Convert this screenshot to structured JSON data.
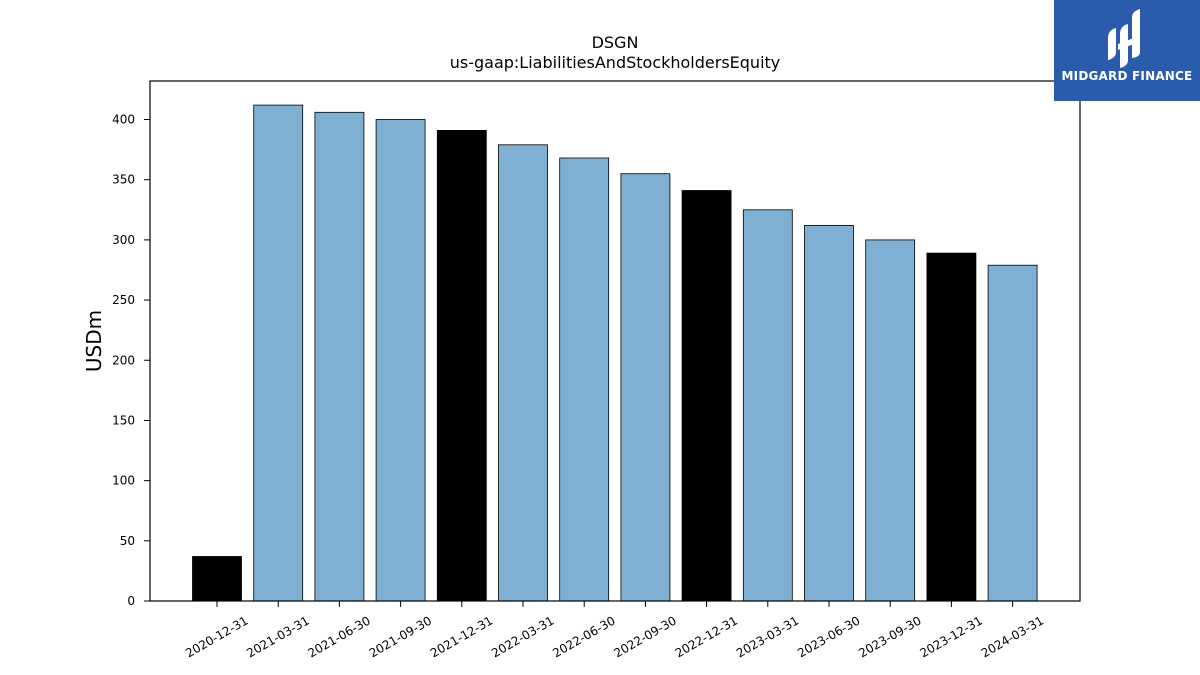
{
  "chart_data": {
    "type": "bar",
    "title": "DSGN",
    "subtitle": "us-gaap:LiabilitiesAndStockholdersEquity",
    "xlabel": "",
    "ylabel": "USDm",
    "ylim": [
      0,
      432
    ],
    "yticks": [
      0,
      50,
      100,
      150,
      200,
      250,
      300,
      350,
      400
    ],
    "categories": [
      "2020-12-31",
      "2021-03-31",
      "2021-06-30",
      "2021-09-30",
      "2021-12-31",
      "2022-03-31",
      "2022-06-30",
      "2022-09-30",
      "2022-12-31",
      "2023-03-31",
      "2023-06-30",
      "2023-09-30",
      "2023-12-31",
      "2024-03-31"
    ],
    "values": [
      37,
      412,
      406,
      400,
      391,
      379,
      368,
      355,
      341,
      325,
      312,
      300,
      289,
      279
    ],
    "bar_colors": [
      "#000000",
      "#7fb0d3",
      "#7fb0d3",
      "#7fb0d3",
      "#000000",
      "#7fb0d3",
      "#7fb0d3",
      "#7fb0d3",
      "#000000",
      "#7fb0d3",
      "#7fb0d3",
      "#7fb0d3",
      "#000000",
      "#7fb0d3"
    ],
    "colors": {
      "quarter": "#7fb0d3",
      "year_end": "#000000"
    },
    "grid": false,
    "legend": "none"
  },
  "logo": {
    "text": "MIDGARD FINANCE",
    "background": "#2b5bab",
    "icon": "midgard-logo-icon"
  }
}
